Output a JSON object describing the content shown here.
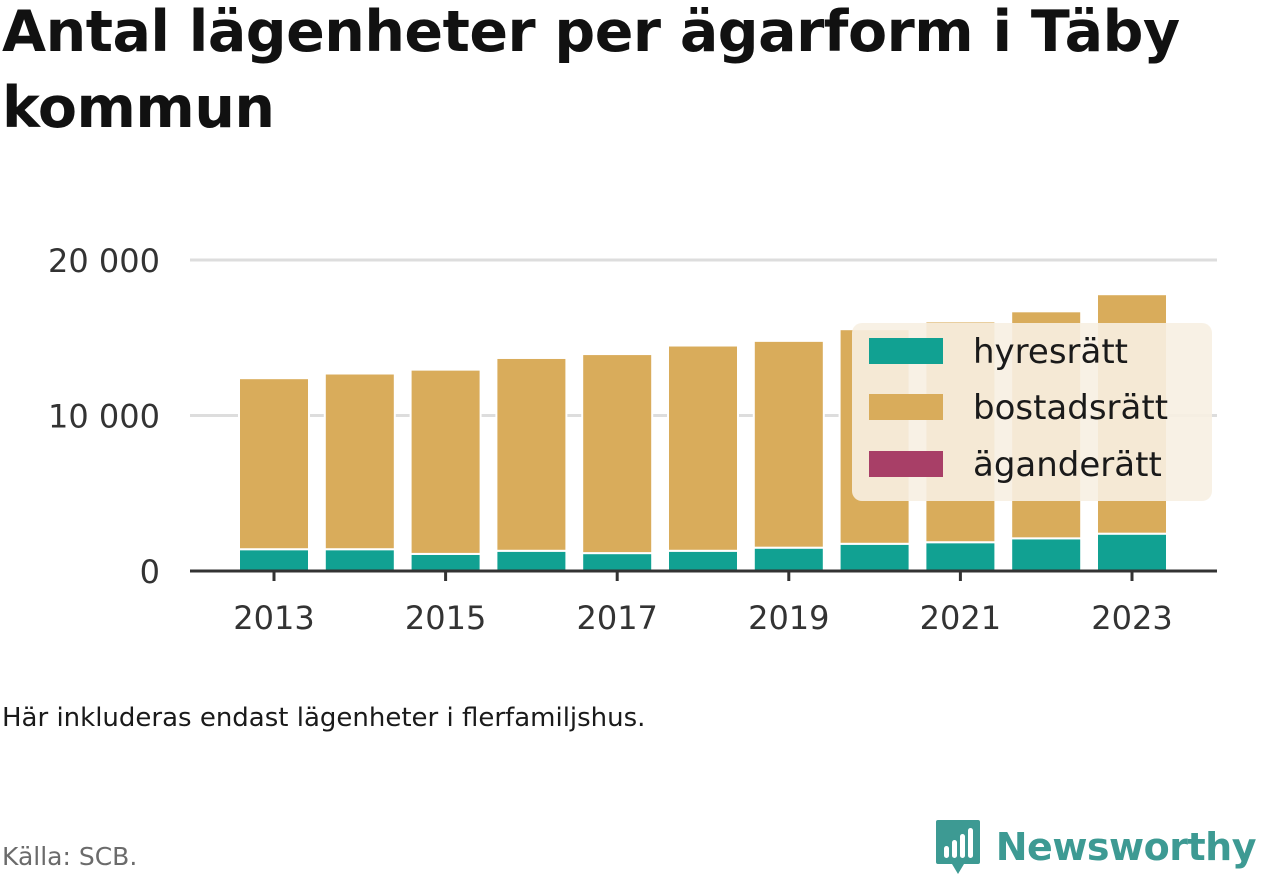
{
  "title": "Antal lägenheter per ägarform i Täby kommun",
  "note": "Här inkluderas endast lägenheter i flerfamiljshus.",
  "source": "Källa: SCB.",
  "brand": "Newsworthy",
  "colors": {
    "hyresratt": "#11a192",
    "bostadsratt": "#d9ac5b",
    "aganderatt": "#a83f67",
    "grid": "#dddddd",
    "axis": "#333333",
    "legend_bg": "#f7efe2",
    "brand": "#3d9a93"
  },
  "chart_data": {
    "type": "bar",
    "stacked": true,
    "x": [
      2013,
      2014,
      2015,
      2016,
      2017,
      2018,
      2019,
      2020,
      2021,
      2022,
      2023
    ],
    "xticks": [
      "2013",
      "2015",
      "2017",
      "2019",
      "2021",
      "2023"
    ],
    "yticks": [
      {
        "value": 0,
        "label": "0"
      },
      {
        "value": 10000,
        "label": "10 000"
      },
      {
        "value": 20000,
        "label": "20 000"
      }
    ],
    "ylim": [
      0,
      20000
    ],
    "grid": true,
    "legend_position": "right",
    "series": [
      {
        "name": "hyresrätt",
        "values": [
          1400,
          1400,
          1100,
          1300,
          1150,
          1300,
          1500,
          1750,
          1850,
          2100,
          2400
        ]
      },
      {
        "name": "bostadsrätt",
        "values": [
          11000,
          11300,
          11850,
          12400,
          12800,
          13200,
          13300,
          13800,
          14200,
          14600,
          15400
        ]
      },
      {
        "name": "äganderätt",
        "values": [
          0,
          0,
          0,
          0,
          0,
          0,
          0,
          0,
          0,
          0,
          0
        ]
      }
    ]
  }
}
